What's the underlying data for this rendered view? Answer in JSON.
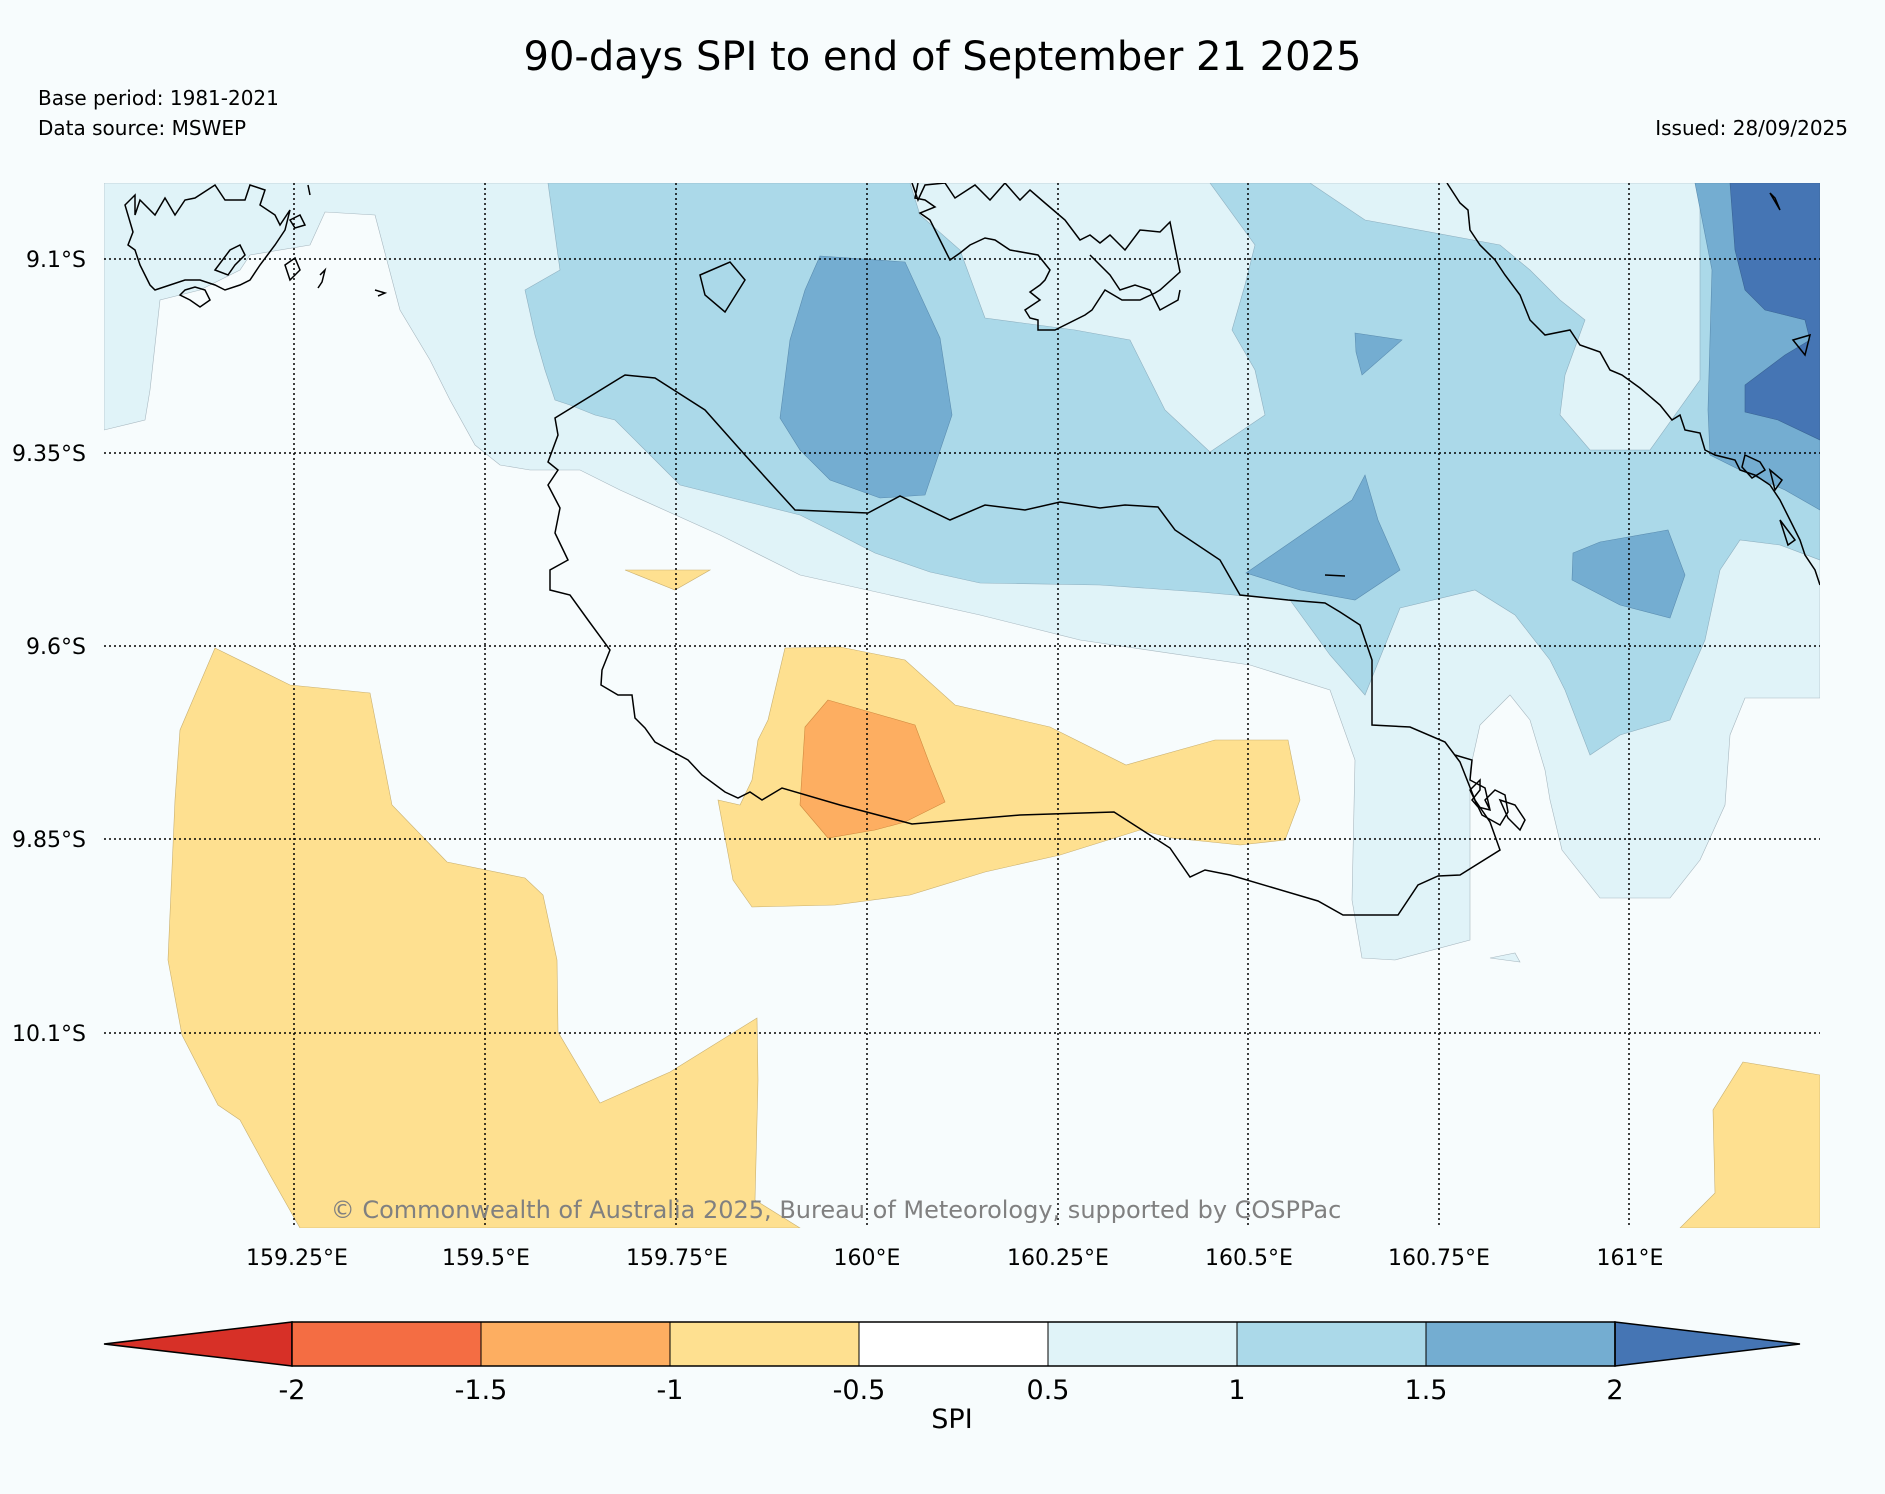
{
  "header": {
    "title": "90-days SPI to end of September 21 2025",
    "base_period": "Base period: 1981-2021",
    "data_source": "Data source: MSWEP",
    "issued": "Issued: 28/09/2025"
  },
  "map": {
    "lat_labels": [
      "9.1°S",
      "9.35°S",
      "9.6°S",
      "9.85°S",
      "10.1°S"
    ],
    "lon_labels": [
      "159.25°E",
      "159.5°E",
      "159.75°E",
      "160°E",
      "160.25°E",
      "160.5°E",
      "160.75°E",
      "161°E"
    ],
    "copyright": "© Commonwealth of Australia 2025, Bureau of Meteorology, supported by COSPPac"
  },
  "colorbar": {
    "label": "SPI",
    "ticks": [
      "-2",
      "-1.5",
      "-1",
      "-0.5",
      "0.5",
      "1",
      "1.5",
      "2"
    ],
    "colors": {
      "lt_-2": "#d73027",
      "-2_-1.5": "#f46d43",
      "-1.5_-1": "#fdae61",
      "-1_-0.5": "#fee090",
      "-0.5_0.5": "#ffffff",
      "0.5_1": "#e0f3f8",
      "1_1.5": "#abd9e9",
      "1.5_2": "#74add1",
      "gt_2": "#4575b4"
    }
  }
}
